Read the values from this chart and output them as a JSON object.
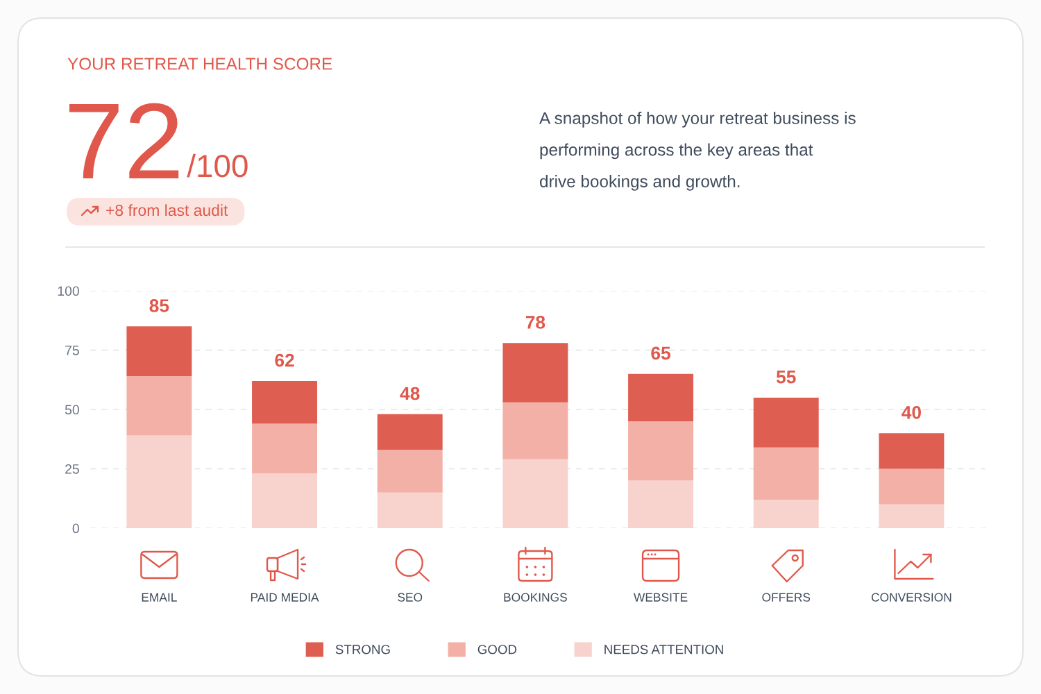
{
  "chart_data": {
    "type": "bar",
    "stacked": true,
    "title": "YOUR RETREAT HEALTH SCORE",
    "annotations": [
      "72",
      "/100",
      "+8 from last audit",
      "A snapshot of how your retreat business is\nperforming across the key areas that\ndrive bookings and growth."
    ],
    "categories": [
      "EMAIL",
      "PAID MEDIA",
      "SEO",
      "BOOKINGS",
      "WEBSITE",
      "OFFERS",
      "CONVERSION"
    ],
    "series": [
      {
        "name": "NEEDS ATTENTION",
        "color": "#f8d3cd",
        "values": [
          39,
          23,
          15,
          29,
          20,
          12,
          10
        ]
      },
      {
        "name": "GOOD",
        "color": "#f2b0a6",
        "values": [
          25,
          21,
          18,
          24,
          25,
          22,
          15
        ]
      },
      {
        "name": "STRONG",
        "color": "#df5e52",
        "values": [
          21,
          18,
          15,
          25,
          20,
          21,
          15
        ]
      }
    ],
    "totals": [
      "85",
      "62",
      "48",
      "78",
      "65",
      "55",
      "40"
    ],
    "ylim": [
      0,
      100
    ],
    "yticks": [
      0,
      25,
      50,
      75,
      100
    ],
    "grid": "y",
    "legend": "bottom"
  }
}
